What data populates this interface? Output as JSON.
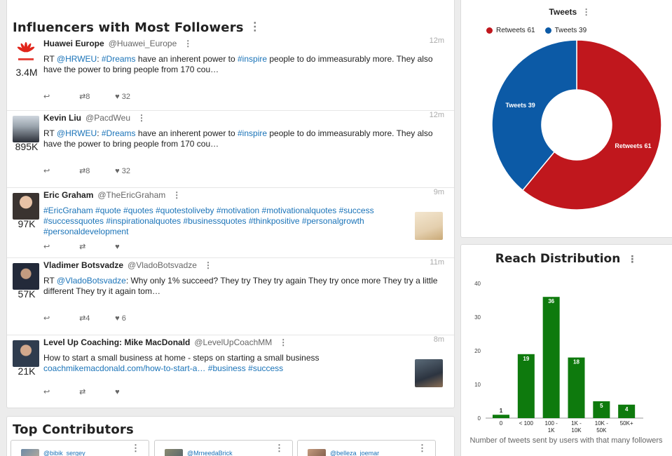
{
  "influencers": {
    "title": "Influencers with Most Followers",
    "rows": [
      {
        "name": "Huawei Europe",
        "handle": "@Huawei_Europe",
        "time": "12m",
        "followers": "3.4M",
        "text": [
          "RT ",
          "@HRWEU",
          ": ",
          "#Dreams",
          " have an inherent power to ",
          "#inspire",
          " people to do immeasurably more. They also have the power to bring people from 170 cou…"
        ],
        "retweets": "8",
        "likes": "32"
      },
      {
        "name": "Kevin Liu",
        "handle": "@PacdWeu",
        "time": "12m",
        "followers": "895K",
        "text": [
          "RT ",
          "@HRWEU",
          ": ",
          "#Dreams",
          " have an inherent power to ",
          "#inspire",
          " people to do immeasurably more. They also have the power to bring people from 170 cou…"
        ],
        "retweets": "8",
        "likes": "32"
      },
      {
        "name": "Eric Graham",
        "handle": "@TheEricGraham",
        "time": "9m",
        "followers": "97K",
        "text": [
          "#EricGraham #quote #quotes #quotestoliveby #motivation #motivationalquotes #success #successquotes #inspirationalquotes #businessquotes #thinkpositive #personalgrowth #personaldevelopment"
        ],
        "retweets": "",
        "likes": ""
      },
      {
        "name": "Vladimer Botsvadze",
        "handle": "@VladoBotsvadze",
        "time": "11m",
        "followers": "57K",
        "text": [
          "RT ",
          "@VladoBotsvadze",
          ": Why only 1% succeed? They try They try again They try once more They try a little different They try it again tom…"
        ],
        "retweets": "4",
        "likes": "6"
      },
      {
        "name": "Level Up Coaching: Mike MacDonald",
        "handle": "@LevelUpCoachMM",
        "time": "8m",
        "followers": "21K",
        "text": [
          "How to start a small business at home - steps on starting a small business ",
          "coachmikemacdonald.com/how-to-start-a…",
          " ",
          "#business",
          " ",
          "#success"
        ],
        "retweets": "",
        "likes": ""
      }
    ]
  },
  "contributors": {
    "title": "Top Contributors",
    "items": [
      {
        "handle": "@bibik_sergey"
      },
      {
        "handle": "@MrneedaBrick"
      },
      {
        "handle": "@belleza_joemar"
      }
    ]
  },
  "tweets_chart": {
    "title": "Tweets",
    "legend": [
      "Retweets 61",
      "Tweets 39"
    ]
  },
  "reach_chart": {
    "title": "Reach Distribution",
    "caption": "Number of tweets sent by users with that many followers"
  },
  "colors": {
    "link": "#1a73b8",
    "retweets": "#c0171d",
    "tweets": "#0c5aa6",
    "bars": "#0e7a0d"
  },
  "chart_data": [
    {
      "type": "pie",
      "title": "Tweets",
      "legend_position": "top-left",
      "labels": [
        "Retweets 61",
        "Tweets 39"
      ],
      "values": [
        61,
        39
      ],
      "donut": true
    },
    {
      "type": "bar",
      "title": "Reach Distribution",
      "categories": [
        "0",
        "< 100",
        "100 - 1K",
        "1K - 10K",
        "10K - 50K",
        "50K+"
      ],
      "values": [
        1,
        19,
        36,
        18,
        5,
        4
      ],
      "xlabel": "Number of tweets sent by users with that many followers",
      "ylabel": "",
      "ylim": [
        0,
        40
      ],
      "yticks": [
        0,
        10,
        20,
        30,
        40
      ],
      "grid": false
    }
  ]
}
